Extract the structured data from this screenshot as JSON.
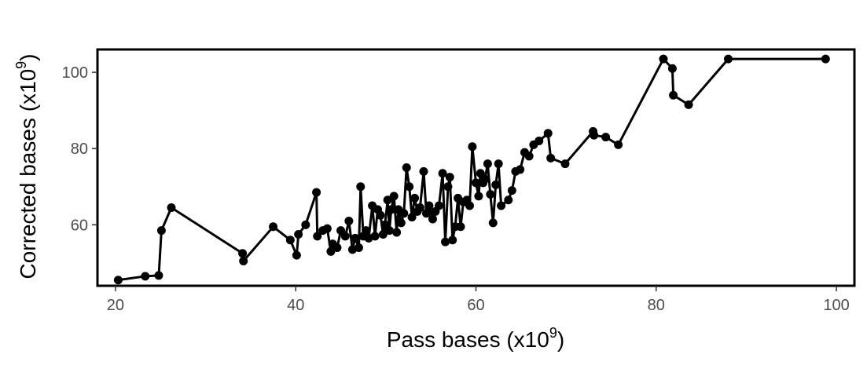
{
  "chart_data": {
    "type": "line",
    "title": "",
    "xlabel_main": "Pass bases (x10",
    "xlabel_sup": "9",
    "xlabel_end": ")",
    "ylabel_main": "Corrected bases (x10",
    "ylabel_sup": "9",
    "ylabel_end": ")",
    "xlim": [
      18,
      102
    ],
    "ylim": [
      44,
      106
    ],
    "xticks": [
      20,
      40,
      60,
      80,
      100
    ],
    "yticks": [
      60,
      80,
      100
    ],
    "grid": false,
    "markers": true,
    "color": "#000000",
    "series": [
      {
        "x": [
          20.3,
          23.3,
          24.8,
          25.1,
          26.2,
          34.1,
          34.2,
          37.5,
          39.4,
          40.1,
          40.3,
          41.1,
          42.3,
          42.4,
          43.0,
          43.5,
          43.9,
          44.1,
          44.6,
          45.0,
          45.5,
          45.9,
          46.3,
          46.6,
          47.0,
          47.2,
          47.5,
          47.8,
          48.1,
          48.5,
          48.8,
          49.1,
          49.4,
          49.7,
          49.9,
          50.2,
          50.4,
          50.6,
          50.9,
          51.2,
          51.4,
          51.7,
          52.0,
          52.3,
          52.6,
          52.9,
          53.2,
          53.5,
          53.8,
          54.2,
          54.5,
          54.8,
          55.2,
          55.5,
          55.9,
          56.3,
          56.6,
          56.9,
          57.1,
          57.4,
          57.7,
          58.0,
          58.3,
          58.6,
          59.0,
          59.3,
          59.6,
          60.0,
          60.3,
          60.5,
          60.8,
          61.0,
          61.3,
          61.6,
          61.9,
          62.2,
          62.5,
          62.8,
          63.6,
          64.0,
          64.4,
          64.9,
          65.4,
          65.9,
          66.4,
          67.0,
          68.0,
          68.3,
          69.9,
          73.0,
          73.1,
          74.4,
          75.8,
          80.8,
          81.8,
          81.9,
          83.6,
          88.0,
          98.8
        ],
        "y": [
          45.5,
          46.5,
          46.7,
          58.5,
          64.5,
          52.5,
          50.5,
          59.5,
          56.0,
          52.0,
          57.5,
          60.0,
          68.5,
          57.0,
          58.5,
          59.0,
          53.0,
          55.0,
          54.0,
          58.5,
          57.0,
          61.0,
          53.5,
          56.5,
          54.0,
          70.0,
          57.0,
          58.5,
          56.5,
          65.0,
          57.0,
          64.0,
          62.5,
          57.5,
          60.0,
          66.5,
          58.5,
          64.0,
          67.5,
          58.0,
          64.0,
          60.5,
          63.0,
          75.0,
          70.0,
          62.0,
          67.0,
          63.5,
          64.5,
          74.0,
          63.0,
          65.0,
          61.5,
          63.5,
          65.0,
          73.5,
          55.5,
          70.0,
          72.5,
          56.0,
          59.5,
          67.0,
          59.5,
          66.0,
          66.5,
          65.0,
          80.5,
          71.0,
          67.5,
          73.5,
          71.0,
          72.0,
          76.0,
          68.0,
          60.5,
          70.5,
          76.0,
          65.0,
          66.5,
          69.0,
          74.0,
          74.5,
          79.0,
          78.0,
          81.0,
          82.0,
          84.0,
          77.5,
          76.0,
          84.5,
          83.5,
          83.0,
          81.0,
          103.5,
          101.0,
          94.0,
          91.5,
          103.5,
          103.5
        ]
      }
    ]
  }
}
